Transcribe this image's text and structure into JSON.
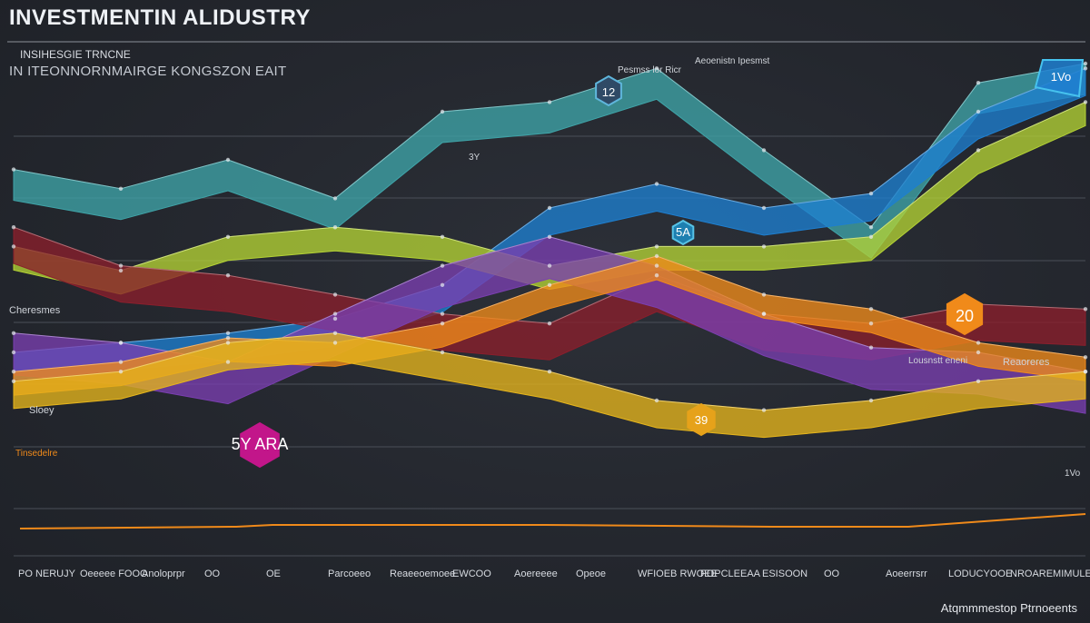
{
  "title": "INVESTMENTIN ALIDUSTRY",
  "subtitle": "INSIHESGIE TRNCNE",
  "subtitle2": "IN ITEONNORNMAIRGE KONGSZON EAIT",
  "notes": [
    "Pesmss lor Ricr",
    "Aeoenistn Ipesmst",
    "12",
    "5A",
    "20",
    "5Y ARA",
    "39",
    "Cheresmes",
    "3Y",
    "Tinsedelre",
    "Sloey",
    "Reaoreres",
    "1Vo",
    "Lousnstt eneni"
  ],
  "footnote_right": "Atqmmmestop Ptrnoeents",
  "x_axis_labels": [
    "PO NERUJY",
    "Oeeeee FOOO",
    "Anoloprpr",
    "OO",
    "OE",
    "Parcoeeo",
    "Reaeeoemoee",
    "EWCOO",
    "Aoereeee",
    "Opeoe",
    "WFIOEB RWOEE",
    "FOPCLEEAA",
    "ESISOON",
    "OO",
    "Aoeerrsrr",
    "LODUCYOOE",
    "NROAREMIMULES"
  ],
  "colors": {
    "teal": "#3fa4a8",
    "cyan": "#46b6dc",
    "blue": "#1e7fd0",
    "lime": "#b4d234",
    "red": "#8a1f2c",
    "purple": "#7a3fb0",
    "orange": "#f08a1a",
    "magenta": "#c2168a",
    "yellow": "#e6b51c"
  },
  "chart_data": {
    "type": "area",
    "title": "INVESTMENTIN ALIDUSTRY",
    "xlabel": "",
    "ylabel": "",
    "ylim": [
      0,
      100
    ],
    "grid": true,
    "x": [
      0,
      10,
      20,
      30,
      40,
      50,
      60,
      70,
      80,
      90,
      100
    ],
    "series": [
      {
        "name": "",
        "color": "teal",
        "values": [
          78,
          74,
          80,
          72,
          90,
          92,
          99,
          82,
          66,
          96,
          100
        ]
      },
      {
        "name": "",
        "color": "blue",
        "values": [
          40,
          42,
          44,
          47,
          54,
          70,
          75,
          70,
          73,
          90,
          99
        ]
      },
      {
        "name": "",
        "color": "lime",
        "values": [
          62,
          57,
          64,
          66,
          64,
          58,
          62,
          62,
          64,
          82,
          92
        ]
      },
      {
        "name": "",
        "color": "red",
        "values": [
          66,
          58,
          56,
          52,
          48,
          46,
          56,
          48,
          46,
          50,
          49
        ]
      },
      {
        "name": "",
        "color": "purple",
        "values": [
          44,
          42,
          38,
          48,
          58,
          64,
          58,
          48,
          41,
          40,
          36
        ]
      },
      {
        "name": "",
        "color": "orange",
        "values": [
          36,
          38,
          43,
          42,
          46,
          54,
          60,
          52,
          49,
          42,
          39
        ]
      },
      {
        "name": "",
        "color": "yellow",
        "values": [
          34,
          36,
          42,
          44,
          40,
          36,
          30,
          28,
          30,
          34,
          36
        ]
      }
    ]
  }
}
